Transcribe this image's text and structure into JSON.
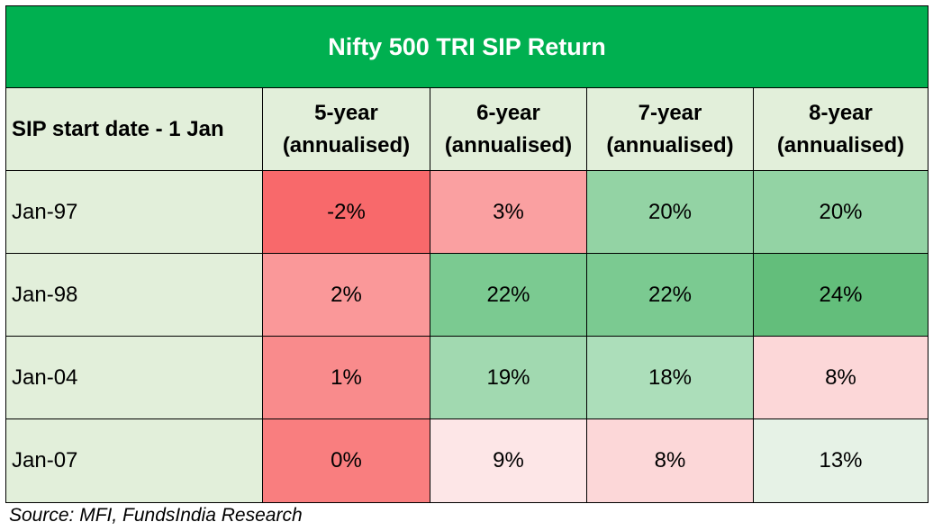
{
  "chart_data": {
    "type": "table",
    "title": "Nifty 500 TRI SIP Return",
    "row_header_label": "SIP start date - 1 Jan",
    "columns": [
      [
        "5-year",
        "(annualised)"
      ],
      [
        "6-year",
        "(annualised)"
      ],
      [
        "7-year",
        "(annualised)"
      ],
      [
        "8-year",
        "(annualised)"
      ]
    ],
    "rows": [
      {
        "label": "Jan-97",
        "values": [
          "-2%",
          "3%",
          "20%",
          "20%"
        ],
        "colors": [
          "#f8696b",
          "#faa0a1",
          "#93d3a4",
          "#93d3a4"
        ]
      },
      {
        "label": "Jan-98",
        "values": [
          "2%",
          "22%",
          "22%",
          "24%"
        ],
        "colors": [
          "#fa9899",
          "#7bca91",
          "#7bca91",
          "#63be7b"
        ]
      },
      {
        "label": "Jan-04",
        "values": [
          "1%",
          "19%",
          "18%",
          "8%"
        ],
        "colors": [
          "#f98b8c",
          "#a1d9b0",
          "#acdeba",
          "#fcd7d8"
        ]
      },
      {
        "label": "Jan-07",
        "values": [
          "0%",
          "9%",
          "8%",
          "13%"
        ],
        "colors": [
          "#f97e7f",
          "#fde6e7",
          "#fcd7d8",
          "#e6f2e6"
        ]
      }
    ],
    "header_fill": "#e2efda",
    "title_fill": "#00b050"
  },
  "source": "Source: MFI, FundsIndia Research"
}
